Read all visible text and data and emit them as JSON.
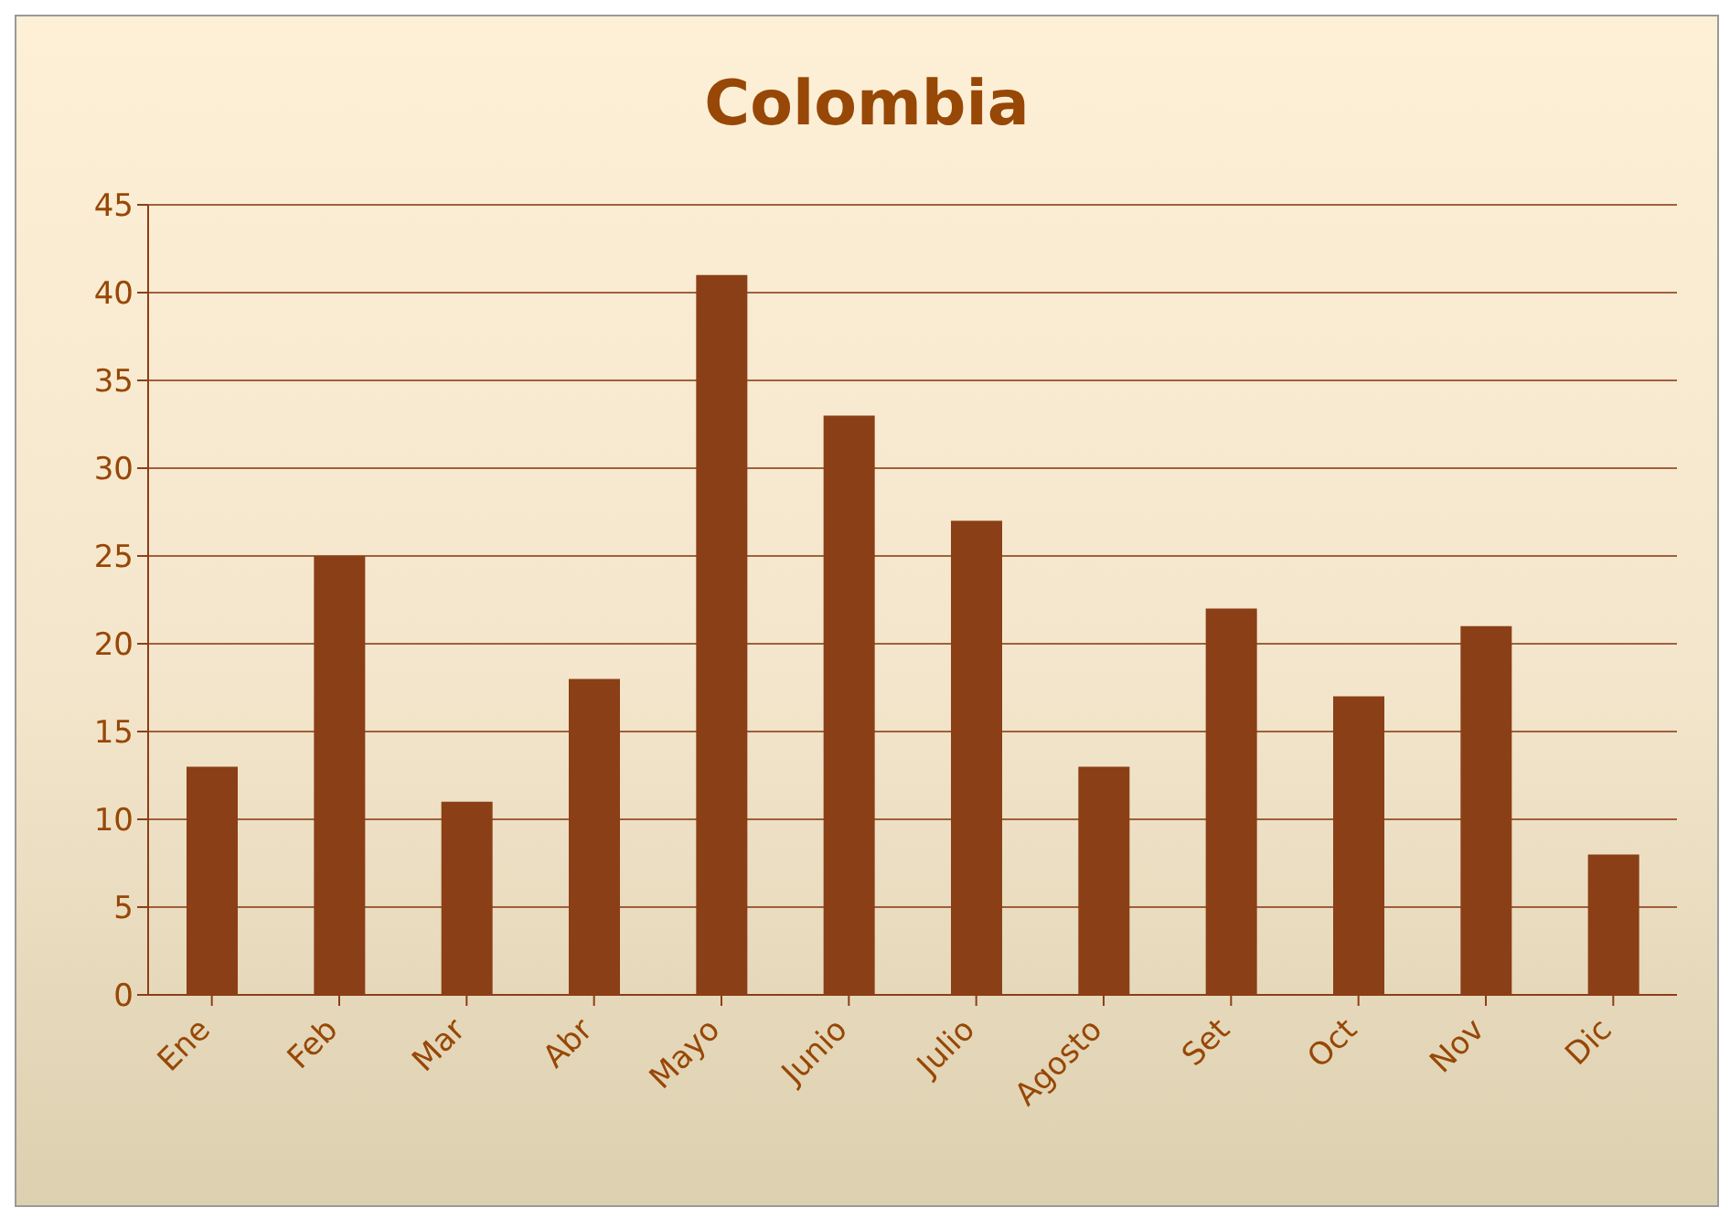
{
  "chart_data": {
    "type": "bar",
    "title": "Colombia",
    "categories": [
      "Ene",
      "Feb",
      "Mar",
      "Abr",
      "Mayo",
      "Junio",
      "Julio",
      "Agosto",
      "Set",
      "Oct",
      "Nov",
      "Dic"
    ],
    "values": [
      13,
      25,
      11,
      18,
      41,
      33,
      27,
      13,
      22,
      17,
      21,
      8
    ],
    "color": "#8b3f17",
    "ylim": [
      0,
      45
    ],
    "yticks": [
      0,
      5,
      10,
      15,
      20,
      25,
      30,
      35,
      40,
      45
    ],
    "grid": "y"
  }
}
